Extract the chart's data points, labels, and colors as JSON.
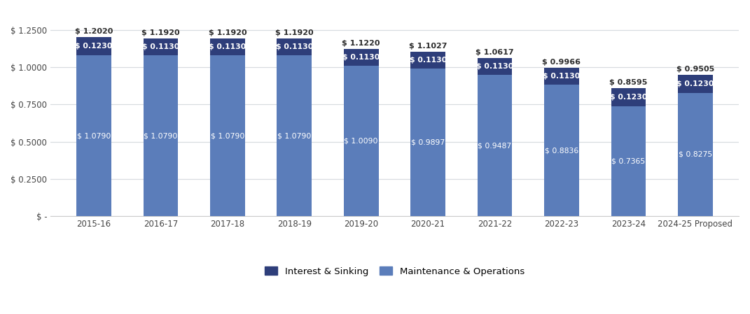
{
  "categories": [
    "2015-16",
    "2016-17",
    "2017-18",
    "2018-19",
    "2019-20",
    "2020-21",
    "2021-22",
    "2022-23",
    "2023-24",
    "2024-25 Proposed"
  ],
  "maintenance": [
    1.079,
    1.079,
    1.079,
    1.079,
    1.009,
    0.9897,
    0.9487,
    0.8836,
    0.7365,
    0.8275
  ],
  "interest": [
    0.123,
    0.113,
    0.113,
    0.113,
    0.113,
    0.113,
    0.113,
    0.113,
    0.123,
    0.123
  ],
  "totals": [
    1.202,
    1.192,
    1.192,
    1.192,
    1.122,
    1.1027,
    1.0617,
    0.9966,
    0.8595,
    0.9505
  ],
  "maintenance_color": "#5b7dba",
  "interest_color": "#2e3e7a",
  "background_color": "#ffffff",
  "plot_bg_color": "#ffffff",
  "text_color_dark": "#2d2d2d",
  "text_color_white": "#ffffff",
  "grid_color": "#d8dce0",
  "legend_labels": [
    "Interest & Sinking",
    "Maintenance & Operations"
  ],
  "ylim": [
    0,
    1.38
  ],
  "yticks": [
    0,
    0.25,
    0.5,
    0.75,
    1.0,
    1.25
  ],
  "ytick_labels": [
    "$ -",
    "$ 0.2500",
    "$ 0.5000",
    "$ 0.7500",
    "$ 1.0000",
    "$ 1.2500"
  ],
  "bar_width": 0.52,
  "total_label_fontsize": 8.0,
  "segment_label_fontsize": 7.8
}
